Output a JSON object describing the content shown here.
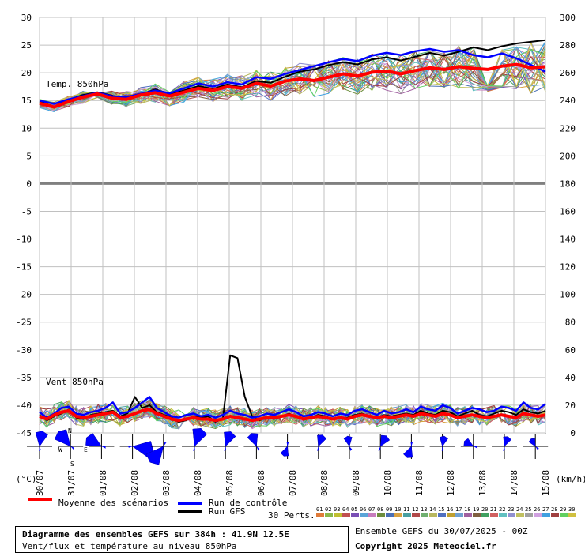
{
  "chart_data": {
    "type": "line",
    "title": "Diagramme des ensembles GEFS sur 384h : 41.9N 12.5E",
    "subtitle": "Vent/flux et température au niveau 850hPa",
    "left_axis": {
      "unit_label": "(°C)",
      "ticks": [
        "30",
        "25",
        "20",
        "15",
        "10",
        "5",
        "0",
        "-5",
        "-10",
        "-15",
        "-20",
        "-25",
        "-30",
        "-35",
        "-40",
        "-45"
      ],
      "range": [
        -45,
        30
      ]
    },
    "right_axis": {
      "unit_label": "(km/h)",
      "ticks": [
        "300",
        "280",
        "260",
        "240",
        "220",
        "200",
        "180",
        "160",
        "140",
        "120",
        "100",
        "80",
        "60",
        "40",
        "20",
        "0"
      ]
    },
    "x_labels": [
      "30/07",
      "31/07",
      "01/08",
      "02/08",
      "03/08",
      "04/08",
      "05/08",
      "06/08",
      "07/08",
      "08/08",
      "09/08",
      "10/08",
      "11/08",
      "12/08",
      "13/08",
      "14/08",
      "15/08"
    ],
    "panel_labels": {
      "temp": "Temp. 850hPa",
      "wind": "Vent 850hPa"
    },
    "compass": {
      "n": "N",
      "w": "W",
      "e": "E",
      "s": "S"
    },
    "temp_mean": [
      14.5,
      13.8,
      14.8,
      15.6,
      16.2,
      15.4,
      15.2,
      16,
      16.4,
      15.8,
      16.5,
      17.2,
      16.8,
      17.5,
      17.2,
      18.1,
      17.6,
      18.5,
      18.9,
      18.6,
      19.2,
      19.8,
      19.4,
      20.1,
      20.3,
      19.8,
      20.4,
      20.9,
      20.6,
      21.1,
      20.8,
      20.6,
      21.2,
      21.5,
      20.9,
      21.1
    ],
    "temp_control": [
      15,
      14.4,
      15.2,
      15.8,
      16.4,
      15.8,
      15.6,
      16.2,
      16.8,
      16.3,
      17.2,
      18.1,
      17.5,
      18.3,
      17.9,
      19.2,
      18.9,
      19.8,
      20.5,
      21.2,
      21.9,
      22.5,
      22.1,
      23.1,
      23.6,
      23.2,
      23.9,
      24.3,
      23.8,
      24.1,
      23.2,
      22.8,
      23.5,
      22.6,
      21.4,
      20.2
    ],
    "temp_gfs": [
      14.8,
      13.9,
      15.1,
      16,
      16.5,
      15.9,
      15.2,
      16.1,
      17,
      16.2,
      16.8,
      17.6,
      17.1,
      17.9,
      17.4,
      18.5,
      18.2,
      19.3,
      20.2,
      20.6,
      21.4,
      21.9,
      21.5,
      22.4,
      22.8,
      22.2,
      22.9,
      23.6,
      23.1,
      23.8,
      24.6,
      24.1,
      24.8,
      25.3,
      25.6,
      25.9
    ],
    "wind_mean": [
      12,
      10,
      13,
      15,
      16,
      12,
      11,
      12,
      13,
      14,
      15,
      11,
      12,
      14,
      16,
      17,
      14,
      12,
      10,
      9,
      10,
      11,
      10,
      10,
      9,
      10,
      12,
      11,
      10,
      9,
      10,
      11,
      11,
      12,
      13,
      12,
      10,
      11,
      12,
      11,
      10,
      11,
      10,
      12,
      13,
      12,
      11,
      12,
      11,
      12,
      13,
      12,
      14,
      13,
      12,
      14,
      13,
      11,
      12,
      13,
      12,
      11,
      12,
      13,
      12,
      11,
      14,
      13,
      12,
      13
    ],
    "wind_control": [
      15,
      11,
      14,
      18,
      19,
      14,
      13,
      15,
      16,
      18,
      22,
      14,
      15,
      18,
      22,
      26,
      18,
      15,
      12,
      11,
      13,
      14,
      12,
      13,
      11,
      13,
      16,
      14,
      13,
      11,
      12,
      14,
      13,
      15,
      17,
      15,
      12,
      13,
      15,
      14,
      12,
      14,
      13,
      16,
      17,
      15,
      13,
      16,
      14,
      15,
      17,
      15,
      19,
      17,
      16,
      20,
      18,
      14,
      16,
      18,
      17,
      15,
      16,
      19,
      18,
      16,
      22,
      18,
      17,
      21
    ],
    "wind_gfs": [
      13,
      9,
      12,
      14,
      17,
      11,
      10,
      13,
      14,
      15,
      16,
      12,
      14,
      26,
      18,
      20,
      15,
      13,
      11,
      8,
      9,
      12,
      11,
      12,
      8,
      10,
      56,
      54,
      26,
      12,
      9,
      11,
      10,
      12,
      14,
      12,
      10,
      11,
      13,
      12,
      10,
      11,
      11,
      13,
      14,
      12,
      11,
      13,
      12,
      13,
      14,
      13,
      16,
      14,
      13,
      16,
      15,
      12,
      14,
      16,
      13,
      12,
      14,
      16,
      15,
      13,
      17,
      15,
      14,
      16
    ],
    "legend": {
      "mean": "Moyenne des scénarios",
      "control": "Run de contrôle",
      "gfs": "Run GFS",
      "perts": "30 Perts.",
      "pert_numbers": [
        "01",
        "02",
        "03",
        "04",
        "05",
        "06",
        "07",
        "08",
        "09",
        "10",
        "11",
        "12",
        "13",
        "14",
        "15",
        "16",
        "17",
        "18",
        "19",
        "20",
        "21",
        "22",
        "23",
        "24",
        "25",
        "26",
        "27",
        "28",
        "29",
        "30"
      ],
      "pert_colors": [
        "#e07b39",
        "#8ab84a",
        "#bfbf30",
        "#c05050",
        "#7a4fb5",
        "#5aa5d8",
        "#c77dbd",
        "#6e8e3e",
        "#4a6fb5",
        "#d8a040",
        "#4aa0a0",
        "#b04a4a",
        "#70b070",
        "#b8b860",
        "#5070c0",
        "#c0a030",
        "#70a0d0",
        "#a060a0",
        "#806040",
        "#40a060",
        "#d06060",
        "#60c0c0",
        "#9090d0",
        "#c0c060",
        "#a0a0a0",
        "#d0a0e0",
        "#40a0e0",
        "#a04040",
        "#60d060",
        "#d0c040"
      ],
      "mean_color": "#ff0000",
      "control_color": "#0000ff",
      "gfs_color": "#000000"
    },
    "footer": {
      "run": "Ensemble GEFS du 30/07/2025 - 00Z",
      "copyright": "Copyright 2025 Meteociel.fr"
    },
    "wind_roses": [
      {
        "dir": 10,
        "len": 18
      },
      {
        "dir": 320,
        "len": 22
      },
      {
        "dir": 300,
        "len": 20
      },
      {
        "dir": 100,
        "len": 24
      },
      {
        "dir": 220,
        "len": 24
      },
      {
        "dir": 20,
        "len": 22
      },
      {
        "dir": 20,
        "len": 18
      },
      {
        "dir": 340,
        "len": 16
      },
      {
        "dir": 200,
        "len": 12
      },
      {
        "dir": 20,
        "len": 14
      },
      {
        "dir": 350,
        "len": 12
      },
      {
        "dir": 30,
        "len": 14
      },
      {
        "dir": 200,
        "len": 14
      },
      {
        "dir": 10,
        "len": 12
      },
      {
        "dir": 300,
        "len": 12
      },
      {
        "dir": 20,
        "len": 12
      },
      {
        "dir": 330,
        "len": 10
      }
    ]
  }
}
